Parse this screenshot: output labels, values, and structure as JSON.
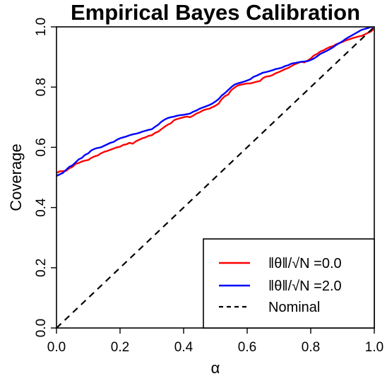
{
  "chart_data": {
    "type": "line",
    "title": "Empirical Bayes Calibration",
    "xlabel": "α",
    "ylabel": "Coverage",
    "xlim": [
      0,
      1
    ],
    "ylim": [
      0,
      1
    ],
    "xticks": [
      "0.0",
      "0.2",
      "0.4",
      "0.6",
      "0.8",
      "1.0"
    ],
    "yticks": [
      "0.0",
      "0.2",
      "0.4",
      "0.6",
      "0.8",
      "1.0"
    ],
    "grid": false,
    "legend_position": "bottom-right",
    "series": [
      {
        "name": "‖θ‖/√N =0.0",
        "color": "#ff0000",
        "x": [
          0,
          0.01,
          0.02,
          0.03,
          0.04,
          0.05,
          0.06,
          0.07,
          0.08,
          0.09,
          0.1,
          0.11,
          0.12,
          0.13,
          0.14,
          0.15,
          0.16,
          0.17,
          0.18,
          0.19,
          0.2,
          0.21,
          0.22,
          0.23,
          0.24,
          0.25,
          0.26,
          0.27,
          0.28,
          0.29,
          0.3,
          0.31,
          0.32,
          0.33,
          0.34,
          0.35,
          0.36,
          0.37,
          0.38,
          0.39,
          0.4,
          0.41,
          0.42,
          0.43,
          0.44,
          0.45,
          0.46,
          0.47,
          0.48,
          0.49,
          0.5,
          0.51,
          0.52,
          0.53,
          0.54,
          0.55,
          0.56,
          0.57,
          0.58,
          0.59,
          0.6,
          0.61,
          0.62,
          0.63,
          0.64,
          0.65,
          0.66,
          0.67,
          0.68,
          0.69,
          0.7,
          0.71,
          0.72,
          0.73,
          0.74,
          0.75,
          0.76,
          0.77,
          0.78,
          0.79,
          0.8,
          0.81,
          0.82,
          0.83,
          0.84,
          0.85,
          0.86,
          0.87,
          0.88,
          0.89,
          0.9,
          0.91,
          0.92,
          0.93,
          0.94,
          0.95,
          0.96,
          0.97,
          0.98,
          0.99,
          1.0
        ],
        "y": [
          0.515,
          0.52,
          0.521,
          0.522,
          0.53,
          0.535,
          0.545,
          0.548,
          0.553,
          0.556,
          0.558,
          0.565,
          0.57,
          0.573,
          0.58,
          0.585,
          0.588,
          0.592,
          0.596,
          0.6,
          0.602,
          0.608,
          0.61,
          0.615,
          0.612,
          0.62,
          0.625,
          0.63,
          0.633,
          0.638,
          0.64,
          0.648,
          0.652,
          0.66,
          0.668,
          0.675,
          0.68,
          0.69,
          0.694,
          0.697,
          0.7,
          0.702,
          0.7,
          0.705,
          0.712,
          0.716,
          0.722,
          0.726,
          0.728,
          0.733,
          0.738,
          0.745,
          0.76,
          0.77,
          0.775,
          0.79,
          0.798,
          0.805,
          0.808,
          0.81,
          0.812,
          0.812,
          0.815,
          0.818,
          0.82,
          0.83,
          0.835,
          0.836,
          0.84,
          0.846,
          0.85,
          0.855,
          0.86,
          0.864,
          0.87,
          0.876,
          0.88,
          0.884,
          0.882,
          0.888,
          0.895,
          0.905,
          0.91,
          0.918,
          0.922,
          0.928,
          0.933,
          0.936,
          0.942,
          0.946,
          0.95,
          0.955,
          0.958,
          0.962,
          0.965,
          0.968,
          0.97,
          0.975,
          0.98,
          0.985,
          0.995
        ]
      },
      {
        "name": "‖θ‖/√N =2.0",
        "color": "#0000ff",
        "x": [
          0,
          0.01,
          0.02,
          0.03,
          0.04,
          0.05,
          0.06,
          0.07,
          0.08,
          0.09,
          0.1,
          0.11,
          0.12,
          0.13,
          0.14,
          0.15,
          0.16,
          0.17,
          0.18,
          0.19,
          0.2,
          0.21,
          0.22,
          0.23,
          0.24,
          0.25,
          0.26,
          0.27,
          0.28,
          0.29,
          0.3,
          0.31,
          0.32,
          0.33,
          0.34,
          0.35,
          0.36,
          0.37,
          0.38,
          0.39,
          0.4,
          0.41,
          0.42,
          0.43,
          0.44,
          0.45,
          0.46,
          0.47,
          0.48,
          0.49,
          0.5,
          0.51,
          0.52,
          0.53,
          0.54,
          0.55,
          0.56,
          0.57,
          0.58,
          0.59,
          0.6,
          0.61,
          0.62,
          0.63,
          0.64,
          0.65,
          0.66,
          0.67,
          0.68,
          0.69,
          0.7,
          0.71,
          0.72,
          0.73,
          0.74,
          0.75,
          0.76,
          0.77,
          0.78,
          0.79,
          0.8,
          0.81,
          0.82,
          0.83,
          0.84,
          0.85,
          0.86,
          0.87,
          0.88,
          0.89,
          0.9,
          0.91,
          0.92,
          0.93,
          0.94,
          0.95,
          0.96,
          0.97,
          0.98,
          0.99,
          1.0
        ],
        "y": [
          0.505,
          0.51,
          0.515,
          0.525,
          0.535,
          0.54,
          0.55,
          0.56,
          0.565,
          0.575,
          0.58,
          0.59,
          0.595,
          0.598,
          0.6,
          0.605,
          0.61,
          0.615,
          0.618,
          0.625,
          0.63,
          0.633,
          0.636,
          0.64,
          0.643,
          0.645,
          0.648,
          0.652,
          0.655,
          0.658,
          0.66,
          0.668,
          0.675,
          0.685,
          0.692,
          0.697,
          0.7,
          0.702,
          0.705,
          0.707,
          0.708,
          0.71,
          0.712,
          0.718,
          0.722,
          0.728,
          0.732,
          0.736,
          0.74,
          0.745,
          0.752,
          0.76,
          0.772,
          0.78,
          0.79,
          0.8,
          0.808,
          0.812,
          0.815,
          0.818,
          0.822,
          0.826,
          0.834,
          0.838,
          0.843,
          0.848,
          0.85,
          0.853,
          0.856,
          0.86,
          0.862,
          0.865,
          0.87,
          0.873,
          0.878,
          0.88,
          0.882,
          0.884,
          0.885,
          0.886,
          0.89,
          0.895,
          0.902,
          0.91,
          0.915,
          0.92,
          0.926,
          0.932,
          0.94,
          0.946,
          0.952,
          0.96,
          0.966,
          0.972,
          0.978,
          0.984,
          0.99,
          0.993,
          0.996,
          1.0,
          1.0
        ]
      },
      {
        "name": "Nominal",
        "color": "#000000",
        "dashed": true,
        "x": [
          0,
          1
        ],
        "y": [
          0,
          1
        ]
      }
    ]
  }
}
